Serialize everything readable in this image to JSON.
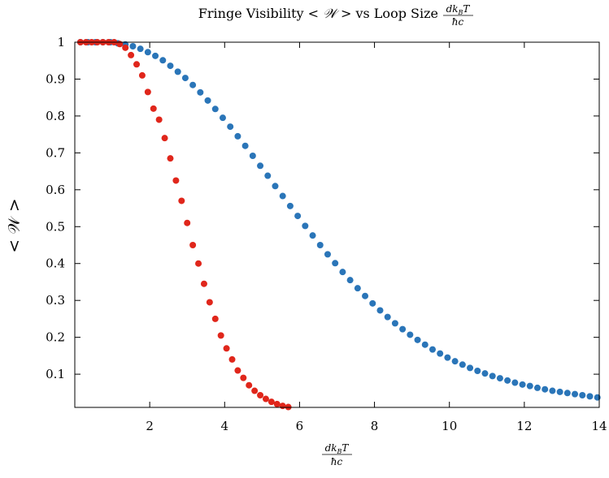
{
  "chart_data": {
    "type": "scatter",
    "title": {
      "prefix": "Fringe Visibility < ",
      "symbol": "𝒲",
      "suffix": " > vs Loop Size",
      "fraction": {
        "numerator": "dk",
        "subscript": "B",
        "numerator_tail": "T",
        "denominator": "ħc"
      }
    },
    "xlabel": {
      "numerator": "dk",
      "subscript": "B",
      "numerator_tail": "T",
      "denominator": "ħc"
    },
    "ylabel": "< 𝒲 >",
    "xlim": [
      0,
      14
    ],
    "ylim": [
      0.01,
      1.0
    ],
    "xticks": [
      2,
      4,
      6,
      8,
      10,
      12,
      14
    ],
    "yticks": [
      0.1,
      0.2,
      0.3,
      0.4,
      0.5,
      0.6,
      0.7,
      0.8,
      0.9,
      1
    ],
    "grid": false,
    "series": [
      {
        "color": "#2a75b8",
        "x": [
          0.15,
          0.35,
          0.55,
          0.75,
          0.95,
          1.15,
          1.35,
          1.55,
          1.75,
          1.95,
          2.15,
          2.35,
          2.55,
          2.75,
          2.95,
          3.15,
          3.35,
          3.55,
          3.75,
          3.95,
          4.15,
          4.35,
          4.55,
          4.75,
          4.95,
          5.15,
          5.35,
          5.55,
          5.75,
          5.95,
          6.15,
          6.35,
          6.55,
          6.75,
          6.95,
          7.15,
          7.35,
          7.55,
          7.75,
          7.95,
          8.15,
          8.35,
          8.55,
          8.75,
          8.95,
          9.15,
          9.35,
          9.55,
          9.75,
          9.95,
          10.15,
          10.35,
          10.55,
          10.75,
          10.95,
          11.15,
          11.35,
          11.55,
          11.75,
          11.95,
          12.15,
          12.35,
          12.55,
          12.75,
          12.95,
          13.15,
          13.35,
          13.55,
          13.75,
          13.95
        ],
        "y": [
          1.0,
          1.0,
          1.0,
          1.0,
          1.0,
          0.997,
          0.994,
          0.989,
          0.982,
          0.973,
          0.963,
          0.951,
          0.936,
          0.92,
          0.903,
          0.884,
          0.864,
          0.842,
          0.819,
          0.795,
          0.771,
          0.745,
          0.719,
          0.692,
          0.665,
          0.638,
          0.61,
          0.583,
          0.556,
          0.529,
          0.502,
          0.476,
          0.45,
          0.425,
          0.401,
          0.377,
          0.355,
          0.333,
          0.312,
          0.292,
          0.273,
          0.255,
          0.238,
          0.222,
          0.207,
          0.193,
          0.18,
          0.167,
          0.156,
          0.145,
          0.135,
          0.126,
          0.117,
          0.109,
          0.102,
          0.095,
          0.089,
          0.083,
          0.077,
          0.072,
          0.068,
          0.063,
          0.059,
          0.055,
          0.052,
          0.049,
          0.046,
          0.043,
          0.04,
          0.037
        ]
      },
      {
        "color": "#e0261b",
        "x": [
          0.15,
          0.3,
          0.45,
          0.6,
          0.75,
          0.9,
          1.05,
          1.2,
          1.35,
          1.5,
          1.65,
          1.8,
          1.95,
          2.1,
          2.25,
          2.4,
          2.55,
          2.7,
          2.85,
          3.0,
          3.15,
          3.3,
          3.45,
          3.6,
          3.75,
          3.9,
          4.05,
          4.2,
          4.35,
          4.5,
          4.65,
          4.8,
          4.95,
          5.1,
          5.25,
          5.4,
          5.55,
          5.7
        ],
        "y": [
          1.0,
          1.0,
          1.0,
          1.0,
          1.0,
          1.0,
          1.0,
          0.995,
          0.985,
          0.965,
          0.94,
          0.91,
          0.865,
          0.82,
          0.79,
          0.74,
          0.685,
          0.625,
          0.57,
          0.51,
          0.45,
          0.4,
          0.345,
          0.295,
          0.25,
          0.205,
          0.17,
          0.14,
          0.11,
          0.09,
          0.07,
          0.055,
          0.043,
          0.033,
          0.025,
          0.019,
          0.014,
          0.011
        ]
      }
    ]
  }
}
